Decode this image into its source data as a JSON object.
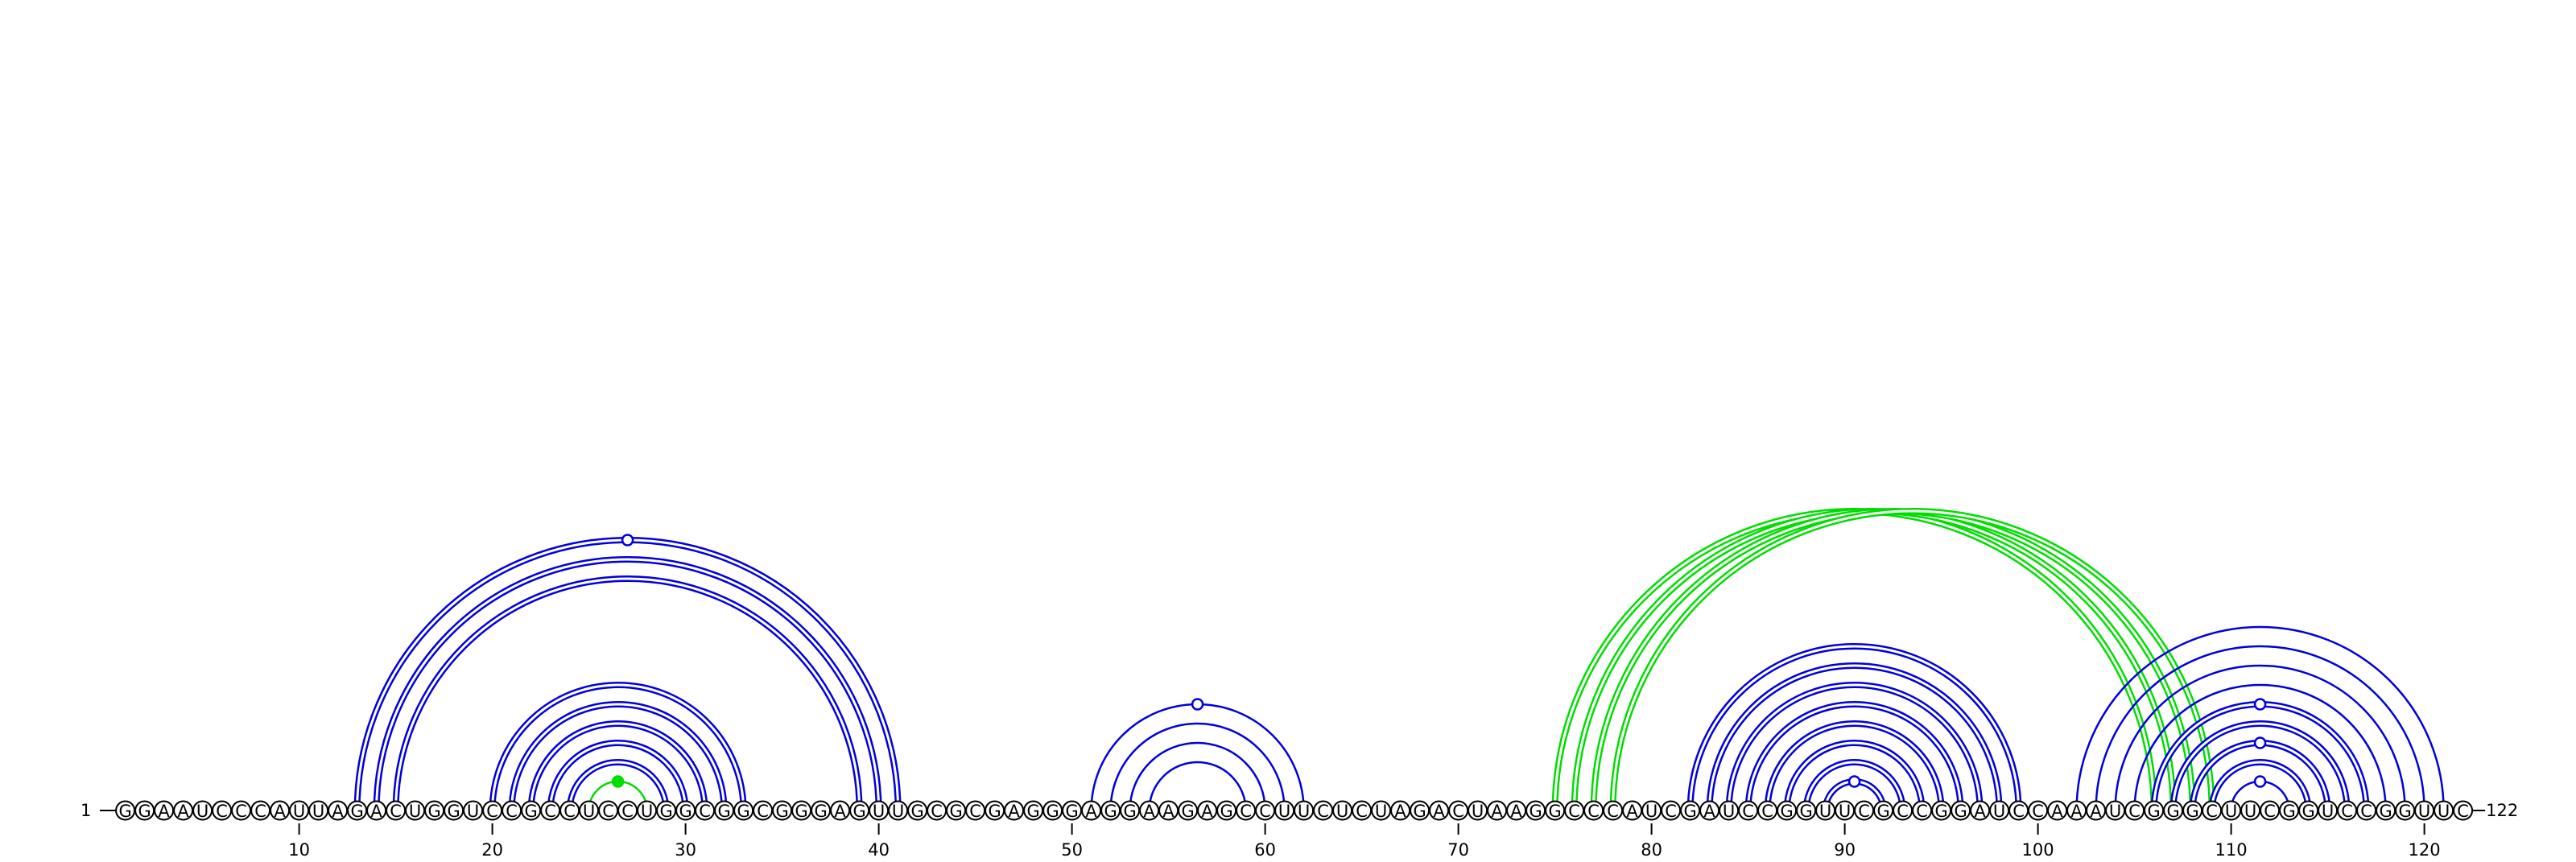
{
  "sequence": "GGAAUCCCAUUAGACUGGUCCGCCUCCUGGCGGCGGGAGUUGCGCGAGGGAGGAAGAGCCUUCUCUAGACUAAGGCCCAUCGAUCCGGUUCGCCGGAUCCAAAUCGGGCUUCGGUCCGGUUC",
  "length": 122,
  "start_label": "1",
  "end_label": "122",
  "tick_labels": [
    "10",
    "20",
    "30",
    "40",
    "50",
    "60",
    "70",
    "80",
    "90",
    "100",
    "110",
    "120"
  ],
  "colors": {
    "blue_pair": "#0000dd",
    "green_pair": "#00dd00",
    "nucleotide_fill": "#ffffff",
    "outline": "#000000"
  },
  "arc_groups": [
    {
      "color": "blue",
      "style": "double",
      "pairs": [
        [
          13,
          41
        ],
        [
          14,
          40
        ],
        [
          15,
          39
        ]
      ],
      "marker": "open",
      "marker_on_outer": true
    },
    {
      "color": "blue",
      "style": "double",
      "pairs": [
        [
          20,
          33
        ],
        [
          21,
          32
        ],
        [
          22,
          31
        ],
        [
          23,
          30
        ],
        [
          24,
          29
        ]
      ]
    },
    {
      "color": "green",
      "style": "single",
      "pairs": [
        [
          25,
          28
        ]
      ],
      "marker": "filled"
    },
    {
      "color": "blue",
      "style": "single",
      "pairs": [
        [
          51,
          62
        ],
        [
          52,
          61
        ],
        [
          53,
          60
        ],
        [
          54,
          59
        ]
      ],
      "marker": "open",
      "marker_on_outer": true
    },
    {
      "color": "green",
      "style": "double",
      "pairs": [
        [
          75,
          106
        ],
        [
          76,
          107
        ],
        [
          77,
          108
        ],
        [
          78,
          109
        ]
      ]
    },
    {
      "color": "blue",
      "style": "double",
      "pairs": [
        [
          82,
          99
        ],
        [
          83,
          98
        ],
        [
          84,
          97
        ],
        [
          85,
          96
        ],
        [
          86,
          95
        ],
        [
          87,
          94
        ],
        [
          88,
          93
        ],
        [
          89,
          92
        ]
      ],
      "marker": "open"
    },
    {
      "color": "blue",
      "style": "single",
      "pairs": [
        [
          102,
          121
        ],
        [
          103,
          120
        ],
        [
          104,
          119
        ],
        [
          105,
          118
        ]
      ]
    },
    {
      "color": "blue",
      "style": "double",
      "pairs": [
        [
          106,
          117
        ],
        [
          107,
          116
        ]
      ],
      "marker": "open",
      "marker_on_outer": true
    },
    {
      "color": "blue",
      "style": "double",
      "pairs": [
        [
          108,
          115
        ],
        [
          109,
          114
        ]
      ],
      "marker": "open",
      "marker_on_outer": true
    },
    {
      "color": "blue",
      "style": "single",
      "pairs": [
        [
          110,
          113
        ]
      ],
      "marker": "open"
    }
  ]
}
